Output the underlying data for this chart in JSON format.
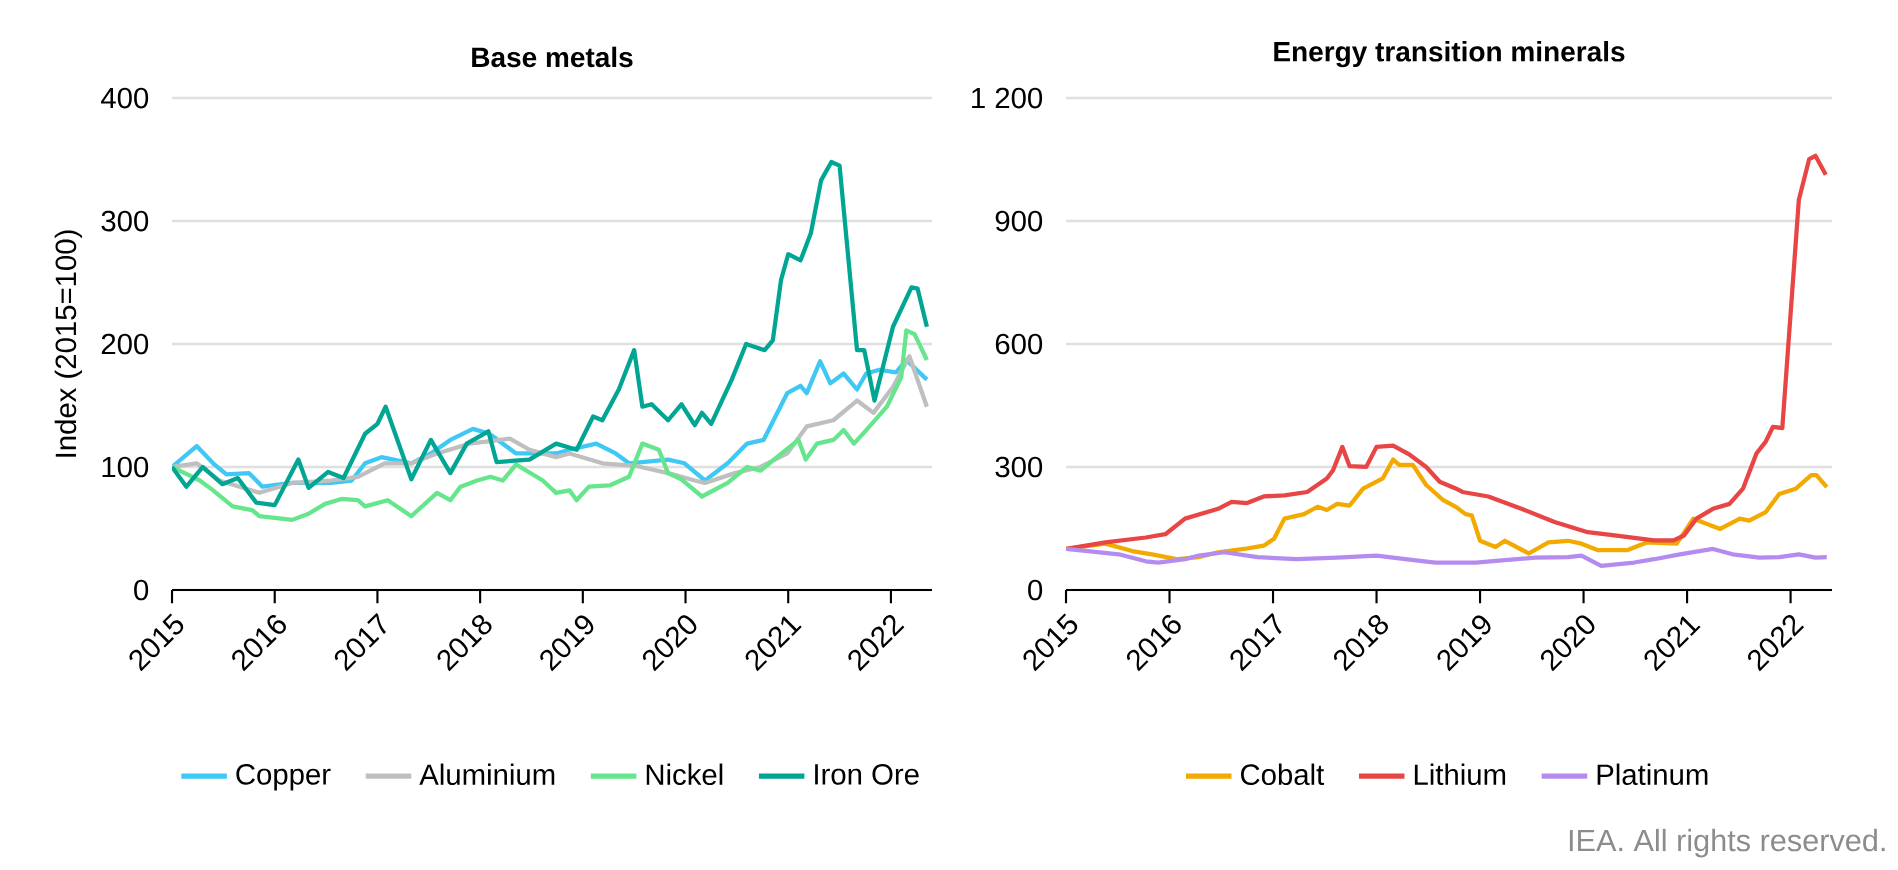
{
  "chart_data": [
    {
      "type": "line",
      "title": "Base metals",
      "ylabel": "Index (2015=100)",
      "xlim": [
        2015,
        2022.4
      ],
      "xticks": [
        2015,
        2016,
        2017,
        2018,
        2019,
        2020,
        2021,
        2022
      ],
      "ylim": [
        0,
        400
      ],
      "yticks": [
        0,
        100,
        200,
        300,
        400
      ],
      "grid": "y",
      "legend": "bottom",
      "series": [
        {
          "name": "Copper",
          "color": "#3fc8f4",
          "x": [
            2015.0,
            2015.24,
            2015.4,
            2015.53,
            2015.75,
            2015.88,
            2016.17,
            2016.55,
            2016.75,
            2016.88,
            2017.04,
            2017.33,
            2017.52,
            2017.71,
            2017.93,
            2018.09,
            2018.35,
            2018.74,
            2018.87,
            2019.13,
            2019.32,
            2019.45,
            2019.83,
            2019.99,
            2020.19,
            2020.41,
            2020.6,
            2020.76,
            2020.99,
            2021.12,
            2021.18,
            2021.31,
            2021.41,
            2021.54,
            2021.67,
            2021.76,
            2021.89,
            2022.05,
            2022.15,
            2022.35
          ],
          "values": [
            100,
            117,
            103,
            94,
            95,
            84,
            87,
            87,
            89,
            103,
            108,
            103,
            111,
            122,
            131,
            127,
            111,
            111,
            114,
            119,
            111,
            103,
            106,
            103,
            89,
            103,
            119,
            122,
            160,
            166,
            160,
            186,
            168,
            176,
            163,
            176,
            179,
            177,
            187,
            171
          ]
        },
        {
          "name": "Aluminium",
          "color": "#bfbfbf",
          "x": [
            2015.0,
            2015.24,
            2015.46,
            2015.85,
            2016.17,
            2016.55,
            2016.81,
            2017.07,
            2017.33,
            2017.58,
            2017.9,
            2018.29,
            2018.48,
            2018.74,
            2018.87,
            2019.19,
            2019.51,
            2019.83,
            2020.09,
            2020.19,
            2020.48,
            2020.73,
            2020.99,
            2021.18,
            2021.44,
            2021.67,
            2021.83,
            2022.02,
            2022.18,
            2022.35
          ],
          "values": [
            100,
            103,
            89,
            79,
            87,
            89,
            92,
            103,
            103,
            111,
            119,
            123,
            114,
            108,
            111,
            103,
            101,
            95,
            89,
            87,
            95,
            100,
            111,
            133,
            138,
            154,
            144,
            165,
            190,
            149
          ]
        },
        {
          "name": "Nickel",
          "color": "#66e68c",
          "x": [
            2015.0,
            2015.27,
            2015.4,
            2015.59,
            2015.78,
            2015.85,
            2016.17,
            2016.33,
            2016.49,
            2016.65,
            2016.81,
            2016.88,
            2017.1,
            2017.33,
            2017.58,
            2017.71,
            2017.81,
            2017.97,
            2018.1,
            2018.22,
            2018.35,
            2018.61,
            2018.74,
            2018.87,
            2018.94,
            2019.06,
            2019.26,
            2019.45,
            2019.58,
            2019.74,
            2019.83,
            2019.96,
            2020.16,
            2020.41,
            2020.6,
            2020.73,
            2020.89,
            2021.1,
            2021.17,
            2021.28,
            2021.44,
            2021.54,
            2021.64,
            2021.76,
            2021.96,
            2022.1,
            2022.15,
            2022.23,
            2022.35
          ],
          "values": [
            100,
            89,
            81,
            68,
            65,
            60,
            57,
            62,
            70,
            74,
            73,
            68,
            73,
            60,
            79,
            73,
            84,
            89,
            92,
            89,
            102,
            89,
            79,
            81,
            73,
            84,
            85,
            92,
            119,
            114,
            95,
            90,
            76,
            87,
            100,
            97,
            108,
            122,
            106,
            119,
            122,
            130,
            119,
            130,
            149,
            173,
            211,
            208,
            187
          ]
        },
        {
          "name": "Iron Ore",
          "color": "#00a693",
          "x": [
            2015.0,
            2015.14,
            2015.3,
            2015.49,
            2015.64,
            2015.82,
            2016.0,
            2016.23,
            2016.33,
            2016.52,
            2016.67,
            2016.88,
            2017.0,
            2017.08,
            2017.33,
            2017.52,
            2017.71,
            2017.87,
            2018.08,
            2018.16,
            2018.48,
            2018.74,
            2018.94,
            2019.1,
            2019.19,
            2019.35,
            2019.5,
            2019.58,
            2019.67,
            2019.83,
            2019.96,
            2020.09,
            2020.16,
            2020.25,
            2020.45,
            2020.59,
            2020.77,
            2020.85,
            2020.93,
            2021.0,
            2021.12,
            2021.22,
            2021.32,
            2021.42,
            2021.5,
            2021.67,
            2021.74,
            2021.84,
            2022.02,
            2022.2,
            2022.26,
            2022.35
          ],
          "values": [
            100,
            84,
            100,
            86,
            91,
            71,
            69,
            106,
            83,
            96,
            91,
            127,
            135,
            149,
            90,
            122,
            95,
            119,
            129,
            104,
            106,
            119,
            114,
            141,
            138,
            163,
            195,
            149,
            151,
            138,
            151,
            134,
            144,
            135,
            171,
            200,
            195,
            203,
            252,
            273,
            268,
            290,
            333,
            348,
            345,
            195,
            195,
            154,
            214,
            246,
            245,
            214
          ]
        }
      ]
    },
    {
      "type": "line",
      "title": "Energy transition minerals",
      "xlim": [
        2015,
        2022.4
      ],
      "xticks": [
        2015,
        2016,
        2017,
        2018,
        2019,
        2020,
        2021,
        2022
      ],
      "ylim": [
        0,
        1200
      ],
      "yticks": [
        0,
        300,
        600,
        900,
        {
          "value": 1200,
          "label": "1 200"
        }
      ],
      "grid": "y",
      "legend": "bottom",
      "annotations": [
        "IEA. All rights reserved."
      ],
      "series": [
        {
          "name": "Cobalt",
          "color": "#f2a900",
          "x": [
            2015.0,
            2015.38,
            2015.64,
            2015.83,
            2016.08,
            2016.28,
            2016.47,
            2016.72,
            2016.91,
            2017.01,
            2017.11,
            2017.3,
            2017.43,
            2017.52,
            2017.62,
            2017.74,
            2017.87,
            2018.06,
            2018.16,
            2018.22,
            2018.35,
            2018.48,
            2018.64,
            2018.77,
            2018.86,
            2018.92,
            2019.0,
            2019.15,
            2019.24,
            2019.47,
            2019.66,
            2019.85,
            2019.98,
            2020.14,
            2020.42,
            2020.61,
            2020.9,
            2021.06,
            2021.32,
            2021.51,
            2021.6,
            2021.76,
            2021.89,
            2022.05,
            2022.2,
            2022.25,
            2022.35
          ],
          "values": [
            100,
            113,
            95,
            87,
            75,
            80,
            92,
            100,
            108,
            125,
            174,
            185,
            203,
            195,
            210,
            206,
            247,
            272,
            318,
            305,
            305,
            256,
            220,
            202,
            185,
            182,
            120,
            105,
            120,
            89,
            116,
            120,
            113,
            97,
            97,
            116,
            113,
            174,
            149,
            174,
            169,
            190,
            234,
            247,
            280,
            280,
            251
          ]
        },
        {
          "name": "Lithium",
          "color": "#e84545",
          "x": [
            2015.0,
            2015.38,
            2015.77,
            2015.96,
            2016.15,
            2016.47,
            2016.6,
            2016.75,
            2016.91,
            2017.11,
            2017.33,
            2017.52,
            2017.58,
            2017.67,
            2017.74,
            2017.9,
            2018.0,
            2018.16,
            2018.32,
            2018.48,
            2018.61,
            2018.77,
            2018.83,
            2019.08,
            2019.4,
            2019.72,
            2020.04,
            2020.3,
            2020.68,
            2020.87,
            2020.97,
            2021.09,
            2021.25,
            2021.41,
            2021.54,
            2021.67,
            2021.76,
            2021.83,
            2021.92,
            2022.08,
            2022.18,
            2022.24,
            2022.34
          ],
          "values": [
            100,
            116,
            128,
            136,
            174,
            198,
            215,
            212,
            228,
            231,
            239,
            272,
            292,
            349,
            302,
            300,
            349,
            352,
            330,
            300,
            264,
            247,
            239,
            228,
            198,
            166,
            141,
            133,
            121,
            121,
            133,
            174,
            198,
            210,
            247,
            333,
            362,
            398,
            395,
            952,
            1051,
            1059,
            1013
          ]
        },
        {
          "name": "Platinum",
          "color": "#b48cf0",
          "x": [
            2015.0,
            2015.51,
            2015.77,
            2015.89,
            2016.15,
            2016.28,
            2016.53,
            2016.85,
            2017.23,
            2017.62,
            2018.0,
            2018.38,
            2018.57,
            2018.96,
            2019.21,
            2019.53,
            2019.85,
            2019.98,
            2020.17,
            2020.49,
            2020.68,
            2020.93,
            2021.25,
            2021.44,
            2021.7,
            2021.89,
            2022.08,
            2022.24,
            2022.35
          ],
          "values": [
            100,
            87,
            70,
            67,
            75,
            84,
            92,
            80,
            75,
            79,
            84,
            72,
            67,
            67,
            72,
            79,
            80,
            84,
            59,
            67,
            75,
            87,
            100,
            87,
            79,
            80,
            87,
            79,
            80
          ]
        }
      ]
    }
  ]
}
